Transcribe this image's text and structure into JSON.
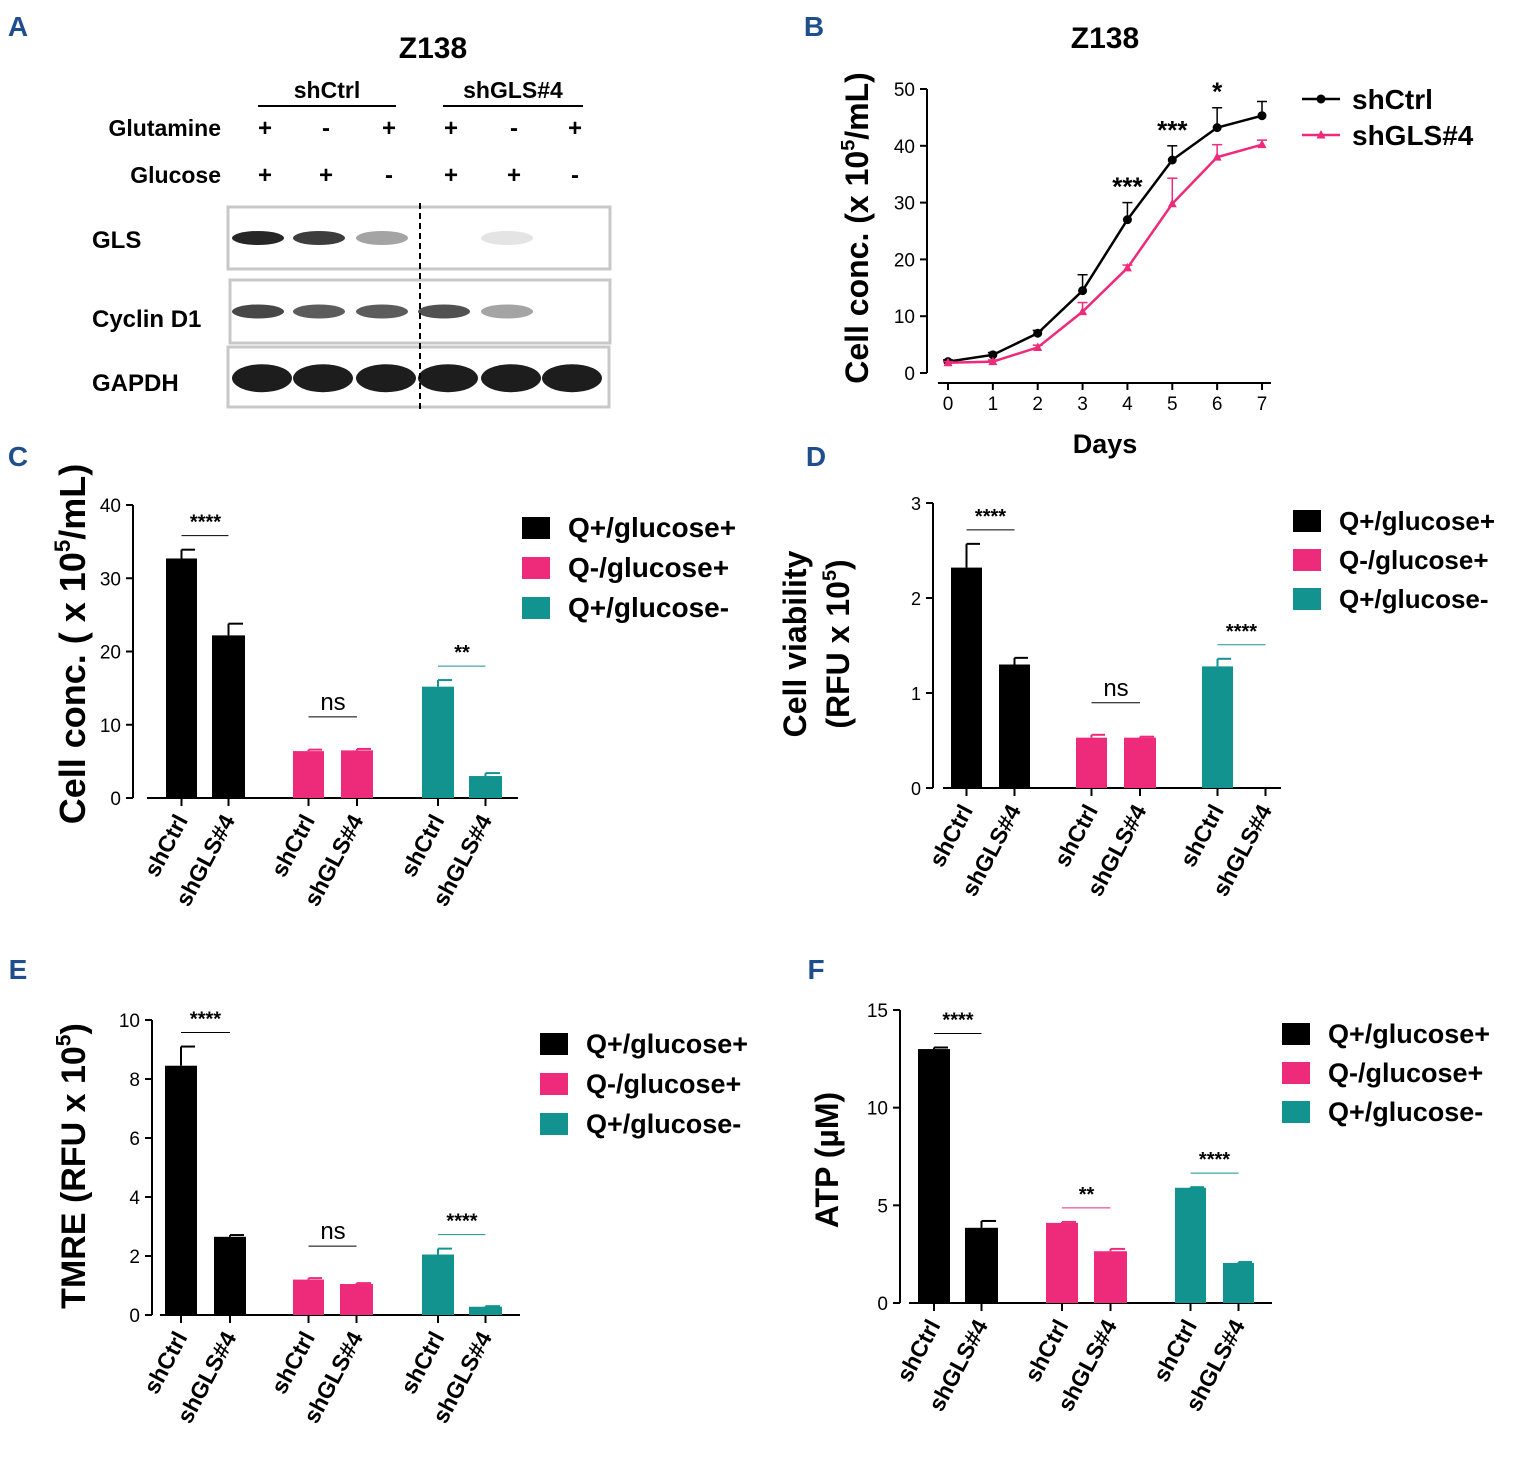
{
  "colors": {
    "ctrl": "#000000",
    "q_minus": "#ee2a7b",
    "gluc_minus": "#13938f",
    "panel_letter": "#1f4e8c",
    "frame": "#c8c8c8"
  },
  "panel_a": {
    "letter": "A",
    "title": "Z138",
    "groups": [
      "shCtrl",
      "shGLS#4"
    ],
    "conditions": [
      {
        "label": "Glutamine",
        "signs": [
          "+",
          "-",
          "+",
          "+",
          "-",
          "+"
        ]
      },
      {
        "label": "Glucose",
        "signs": [
          "+",
          "+",
          "-",
          "+",
          "+",
          "-"
        ]
      }
    ],
    "blots": [
      {
        "label": "GLS",
        "intensity": [
          0.95,
          0.85,
          0.35,
          0.0,
          0.04,
          0.0
        ]
      },
      {
        "label": "Cyclin D1",
        "intensity": [
          0.8,
          0.7,
          0.7,
          0.75,
          0.35,
          0.0
        ]
      },
      {
        "label": "GAPDH",
        "intensity": [
          1.0,
          1.0,
          1.0,
          1.0,
          1.0,
          1.0
        ]
      }
    ]
  },
  "chart_data": [
    {
      "panel": "B",
      "type": "line",
      "title": "Z138",
      "xlabel": "Days",
      "ylabel_main": "Cell conc. (x 10",
      "ylabel_exp": "5",
      "ylabel_tail": "/mL)",
      "x": [
        0,
        1,
        2,
        3,
        4,
        5,
        6,
        7
      ],
      "xlim": [
        0,
        7
      ],
      "ylim": [
        0,
        50
      ],
      "yticks": [
        0,
        10,
        20,
        30,
        40,
        50
      ],
      "xticks": [
        0,
        1,
        2,
        3,
        4,
        5,
        6,
        7
      ],
      "series": [
        {
          "name": "shCtrl",
          "color": "#000000",
          "marker": "circle",
          "values": [
            2,
            3.2,
            7,
            14.5,
            27,
            37.5,
            43.2,
            45.3
          ],
          "errors": [
            0.3,
            0.4,
            0.5,
            2.8,
            3,
            2.5,
            3.5,
            2.5
          ]
        },
        {
          "name": "shGLS#4",
          "color": "#ee2a7b",
          "marker": "triangle",
          "values": [
            1.8,
            2,
            4.5,
            10.8,
            18.5,
            29.8,
            38,
            40.2
          ],
          "errors": [
            0.2,
            0.3,
            0.4,
            1.6,
            0.5,
            4.5,
            2.2,
            0.8
          ]
        }
      ],
      "annotations": [
        {
          "x": 4,
          "text": "***"
        },
        {
          "x": 5,
          "text": "***"
        },
        {
          "x": 6,
          "text": "*"
        }
      ],
      "legend": "top-right"
    },
    {
      "panel": "C",
      "type": "bar",
      "ylabel_main": "Cell conc. ( x 10",
      "ylabel_exp": "5",
      "ylabel_tail": "/mL)",
      "ylim": [
        0,
        40
      ],
      "yticks": [
        0,
        10,
        20,
        30,
        40
      ],
      "legend": [
        "Q+/glucose+",
        "Q-/glucose+",
        "Q+/glucose-"
      ],
      "groups": [
        {
          "condition": "Q+/glucose+",
          "labels": [
            "shCtrl",
            "shGLS#4"
          ],
          "values": [
            32.7,
            22.2
          ],
          "errors": [
            1.2,
            1.6
          ],
          "sig": "****"
        },
        {
          "condition": "Q-/glucose+",
          "labels": [
            "shCtrl",
            "shGLS#4"
          ],
          "values": [
            6.4,
            6.5
          ],
          "errors": [
            0.2,
            0.2
          ],
          "sig": "ns"
        },
        {
          "condition": "Q+/glucose-",
          "labels": [
            "shCtrl",
            "shGLS#4"
          ],
          "values": [
            15.2,
            3.0
          ],
          "errors": [
            0.9,
            0.4
          ],
          "sig": "**"
        }
      ]
    },
    {
      "panel": "D",
      "type": "bar",
      "ylabel_line1": "Cell viability",
      "ylabel_main": "(RFU x 10",
      "ylabel_exp": "5",
      "ylabel_tail": ")",
      "ylim": [
        0,
        3
      ],
      "yticks": [
        0,
        1,
        2,
        3
      ],
      "legend": [
        "Q+/glucose+",
        "Q-/glucose+",
        "Q+/glucose-"
      ],
      "groups": [
        {
          "condition": "Q+/glucose+",
          "labels": [
            "shCtrl",
            "shGLS#4"
          ],
          "values": [
            2.32,
            1.3
          ],
          "errors": [
            0.25,
            0.07
          ],
          "sig": "****"
        },
        {
          "condition": "Q-/glucose+",
          "labels": [
            "shCtrl",
            "shGLS#4"
          ],
          "values": [
            0.53,
            0.53
          ],
          "errors": [
            0.03,
            0.01
          ],
          "sig": "ns"
        },
        {
          "condition": "Q+/glucose-",
          "labels": [
            "shCtrl",
            "shGLS#4"
          ],
          "values": [
            1.28,
            0.0
          ],
          "errors": [
            0.08,
            0.0
          ],
          "sig": "****"
        }
      ]
    },
    {
      "panel": "E",
      "type": "bar",
      "ylabel_main": "TMRE (RFU x 10",
      "ylabel_exp": "5",
      "ylabel_tail": ")",
      "ylim": [
        0,
        10
      ],
      "yticks": [
        0,
        2,
        4,
        6,
        8,
        10
      ],
      "legend": [
        "Q+/glucose+",
        "Q-/glucose+",
        "Q+/glucose-"
      ],
      "groups": [
        {
          "condition": "Q+/glucose+",
          "labels": [
            "shCtrl",
            "shGLS#4"
          ],
          "values": [
            8.45,
            2.65
          ],
          "errors": [
            0.65,
            0.06
          ],
          "sig": "****"
        },
        {
          "condition": "Q-/glucose+",
          "labels": [
            "shCtrl",
            "shGLS#4"
          ],
          "values": [
            1.2,
            1.05
          ],
          "errors": [
            0.05,
            0.03
          ],
          "sig": "ns"
        },
        {
          "condition": "Q+/glucose-",
          "labels": [
            "shCtrl",
            "shGLS#4"
          ],
          "values": [
            2.05,
            0.28
          ],
          "errors": [
            0.2,
            0.02
          ],
          "sig": "****"
        }
      ]
    },
    {
      "panel": "F",
      "type": "bar",
      "ylabel_main": "ATP (µM)",
      "ylabel_exp": "",
      "ylabel_tail": "",
      "ylim": [
        0,
        15
      ],
      "yticks": [
        0,
        5,
        10,
        15
      ],
      "legend": [
        "Q+/glucose+",
        "Q-/glucose+",
        "Q+/glucose-"
      ],
      "groups": [
        {
          "condition": "Q+/glucose+",
          "labels": [
            "shCtrl",
            "shGLS#4"
          ],
          "values": [
            13.0,
            3.85
          ],
          "errors": [
            0.08,
            0.35
          ],
          "sig": "****"
        },
        {
          "condition": "Q-/glucose+",
          "labels": [
            "shCtrl",
            "shGLS#4"
          ],
          "values": [
            4.1,
            2.65
          ],
          "errors": [
            0.05,
            0.12
          ],
          "sig": "**"
        },
        {
          "condition": "Q+/glucose-",
          "labels": [
            "shCtrl",
            "shGLS#4"
          ],
          "values": [
            5.9,
            2.05
          ],
          "errors": [
            0.03,
            0.05
          ],
          "sig": "****"
        }
      ]
    }
  ]
}
